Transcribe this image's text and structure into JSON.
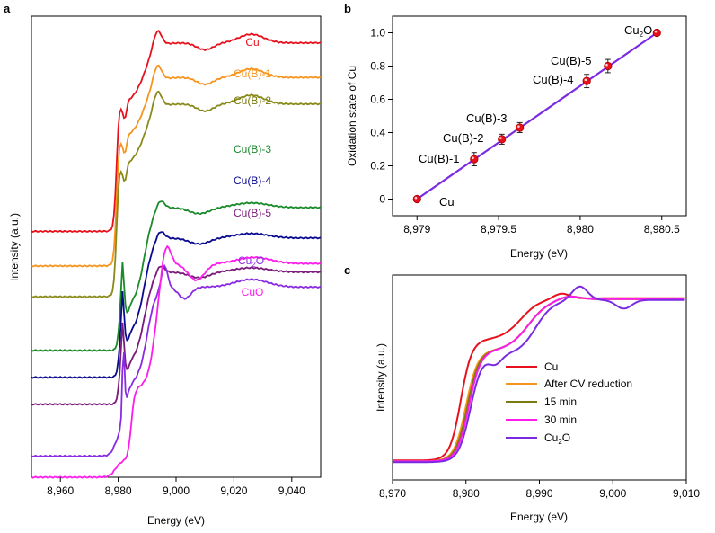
{
  "chart_data": [
    {
      "panel": "a",
      "type": "line",
      "xlabel": "Energy (eV)",
      "ylabel": "Intensity (a.u.)",
      "xlim": [
        8950,
        9050
      ],
      "ylim": [
        0,
        12
      ],
      "grid": false,
      "x_ticks": [
        8960,
        8980,
        9000,
        9020,
        9040
      ],
      "x_tick_labels": [
        "8,960",
        "8,980",
        "9,000",
        "9,020",
        "9,040"
      ],
      "series": [
        {
          "name": "Cu",
          "color": "#e8101c",
          "offset": 6.4,
          "step": 4.5,
          "shape": "metal"
        },
        {
          "name": "Cu(B)-1",
          "color": "#f7941d",
          "offset": 5.5,
          "step": 4.5,
          "shape": "metal"
        },
        {
          "name": "Cu(B)-2",
          "color": "#8a8a1a",
          "offset": 4.7,
          "step": 4.6,
          "shape": "metal"
        },
        {
          "name": "Cu(B)-3",
          "color": "#1a8a2a",
          "offset": 3.3,
          "step": 4.0,
          "shape": "mixed"
        },
        {
          "name": "Cu(B)-4",
          "color": "#0a0a90",
          "offset": 2.6,
          "step": 3.9,
          "shape": "mixed"
        },
        {
          "name": "Cu(B)-5",
          "color": "#7a1a7a",
          "offset": 1.9,
          "step": 3.7,
          "shape": "mixed"
        },
        {
          "name": "Cu₂O",
          "color": "#8a2be2",
          "offset": 0.55,
          "step": 5.0,
          "shape": "oxide"
        },
        {
          "name": "CuO",
          "color": "#ff1aee",
          "offset": 0.0,
          "step": 5.4,
          "shape": "cuo"
        }
      ],
      "labels": {
        "Cu": "Cu",
        "CuB1": "Cu(B)-1",
        "CuB2": "Cu(B)-2",
        "CuB3": "Cu(B)-3",
        "CuB4": "Cu(B)-4",
        "CuB5": "Cu(B)-5",
        "Cu2O_base": "Cu",
        "Cu2O_sub": "2",
        "Cu2O_tail": "O",
        "CuO": "CuO"
      }
    },
    {
      "panel": "b",
      "type": "scatter",
      "xlabel": "Energy (eV)",
      "ylabel": "Oxidation state of Cu",
      "xlim": [
        8978.85,
        8980.65
      ],
      "ylim": [
        -0.1,
        1.1
      ],
      "x_ticks": [
        8979,
        8979.5,
        8980,
        8980.5
      ],
      "x_tick_labels": [
        "8,979",
        "8,979.5",
        "8,980",
        "8,980.5"
      ],
      "y_ticks": [
        0,
        0.2,
        0.4,
        0.6,
        0.8,
        1.0
      ],
      "y_tick_labels": [
        "0",
        "0.2",
        "0.4",
        "0.6",
        "0.8",
        "1.0"
      ],
      "points": [
        {
          "label": "Cu",
          "x": 8979.0,
          "y": 0.0,
          "err": 0.0
        },
        {
          "label": "Cu(B)-1",
          "x": 8979.35,
          "y": 0.24,
          "err": 0.04
        },
        {
          "label": "Cu(B)-2",
          "x": 8979.52,
          "y": 0.36,
          "err": 0.03
        },
        {
          "label": "Cu(B)-3",
          "x": 8979.63,
          "y": 0.43,
          "err": 0.03
        },
        {
          "label": "Cu(B)-4",
          "x": 8980.04,
          "y": 0.71,
          "err": 0.04
        },
        {
          "label": "Cu(B)-5",
          "x": 8980.17,
          "y": 0.8,
          "err": 0.04
        },
        {
          "label": "Cu2O",
          "x": 8980.47,
          "y": 1.0,
          "err": 0.0
        }
      ],
      "fit_line": {
        "x": [
          8979.0,
          8980.47
        ],
        "y": [
          0.0,
          1.0
        ],
        "color": "#7a2be2"
      },
      "point_color": "#e8101c",
      "labels": {
        "Cu": "Cu",
        "CuB1": "Cu(B)-1",
        "CuB2": "Cu(B)-2",
        "CuB3": "Cu(B)-3",
        "CuB4": "Cu(B)-4",
        "CuB5": "Cu(B)-5",
        "Cu2O_base": "Cu",
        "Cu2O_sub": "2",
        "Cu2O_tail": "O"
      }
    },
    {
      "panel": "c",
      "type": "line",
      "xlabel": "Energy (eV)",
      "ylabel": "Intensity (a.u.)",
      "xlim": [
        8970,
        9010
      ],
      "x_ticks": [
        8970,
        8980,
        8990,
        9000,
        9010
      ],
      "x_tick_labels": [
        "8,970",
        "8,980",
        "8,990",
        "9,000",
        "9,010"
      ],
      "legend_position": "lower-center",
      "series": [
        {
          "name": "Cu",
          "color": "#e8101c",
          "shape": "metal"
        },
        {
          "name": "After CV reduction",
          "color": "#f7941d",
          "shape": "mid"
        },
        {
          "name": "15 min",
          "color": "#7a7a10",
          "shape": "mid"
        },
        {
          "name": "30 min",
          "color": "#ff1aee",
          "shape": "mid"
        },
        {
          "name": "Cu₂O",
          "color": "#7a2be2",
          "shape": "oxide"
        }
      ],
      "legend": {
        "s0": "Cu",
        "s1": "After CV reduction",
        "s2": "15 min",
        "s3": "30 min",
        "s4_base": "Cu",
        "s4_sub": "2",
        "s4_tail": "O"
      }
    }
  ],
  "panel_labels": {
    "a": "a",
    "b": "b",
    "c": "c"
  }
}
